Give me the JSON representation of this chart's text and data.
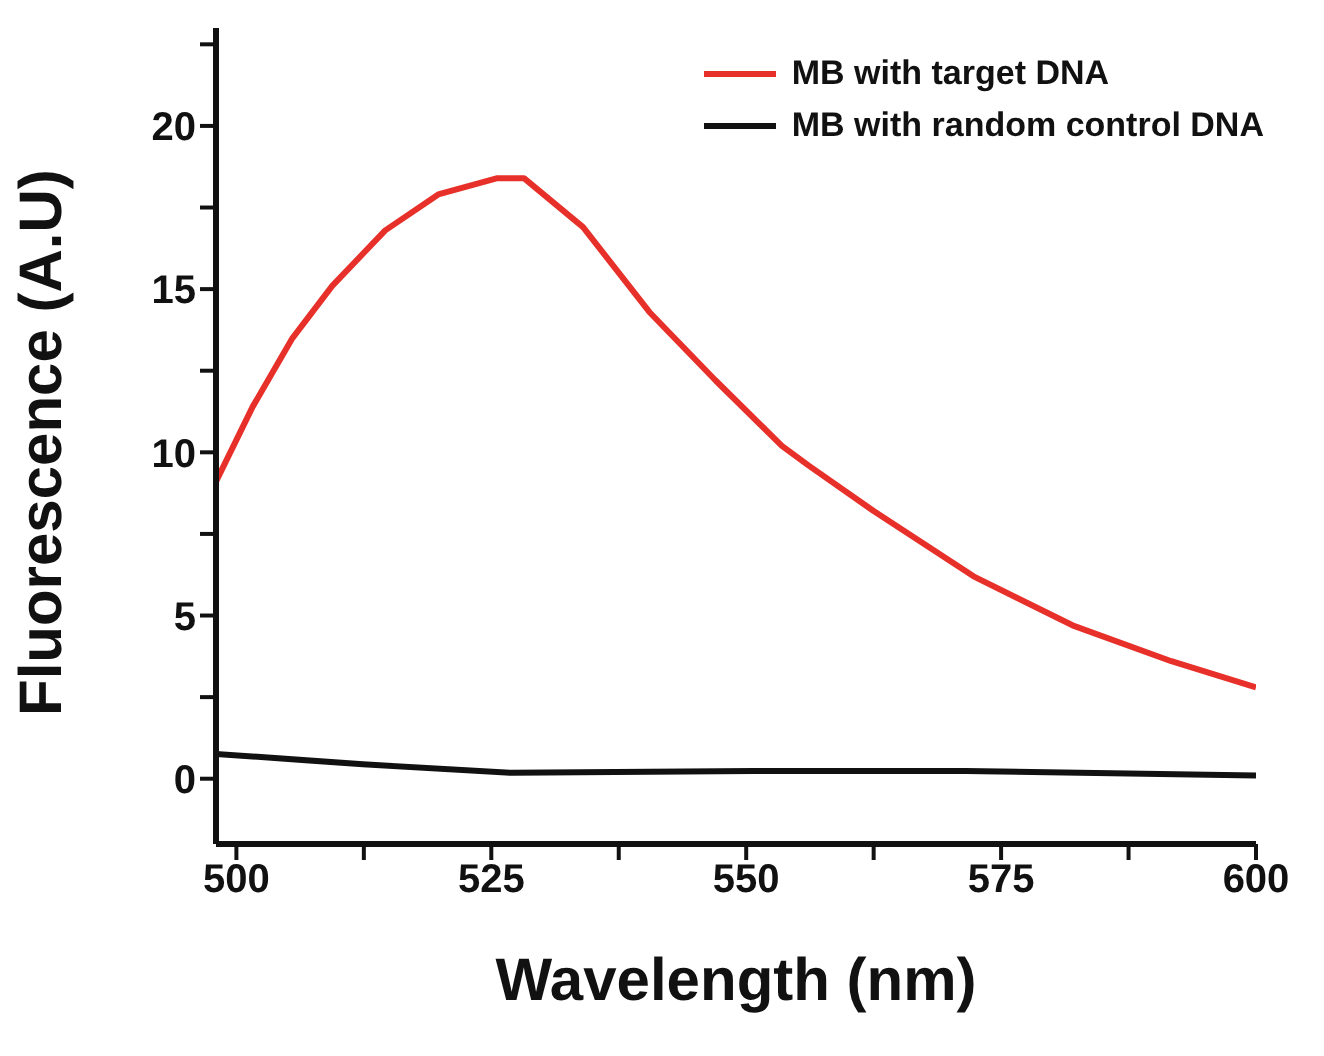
{
  "chart_data": {
    "type": "line",
    "xlabel": "Wavelength (nm)",
    "ylabel": "Fluorescence (A.U)",
    "xlim": [
      498,
      600
    ],
    "xticks": [
      500,
      {
        "value": 512.5,
        "label": null
      },
      525,
      {
        "value": 537.5,
        "label": null
      },
      550,
      {
        "value": 562.5,
        "label": null
      },
      575,
      {
        "value": 587.5,
        "label": null
      },
      600
    ],
    "ylim": [
      -2,
      23
    ],
    "yticks": [
      0,
      {
        "value": 2.5,
        "label": null
      },
      5,
      {
        "value": 7.5,
        "label": null
      },
      10,
      {
        "value": 12.5,
        "label": null
      },
      15,
      {
        "value": 17.5,
        "label": null
      },
      20,
      {
        "value": 22.5,
        "label": null
      }
    ],
    "grid": false,
    "legend": "top right",
    "marker": "none",
    "line_style": "solid",
    "series": [
      {
        "name": "MB with target DNA",
        "color": "#e8302a",
        "x": [
          498,
          501.6,
          505.5,
          509.4,
          514.6,
          519.8,
          525.6,
          528.2,
          534,
          540.5,
          547,
          553.5,
          556.1,
          562.5,
          572.3,
          582,
          591.7,
          600
        ],
        "values": [
          9.1,
          11.4,
          13.5,
          15.1,
          16.8,
          17.9,
          18.4,
          18.4,
          16.9,
          14.3,
          12.2,
          10.2,
          9.6,
          8.2,
          6.2,
          4.7,
          3.6,
          2.8
        ]
      },
      {
        "name": "MB with random control DNA",
        "color": "#111111",
        "x": [
          498,
          512.4,
          527,
          550.7,
          571.5,
          600
        ],
        "values": [
          0.76,
          0.44,
          0.18,
          0.24,
          0.24,
          0.1
        ]
      }
    ]
  }
}
